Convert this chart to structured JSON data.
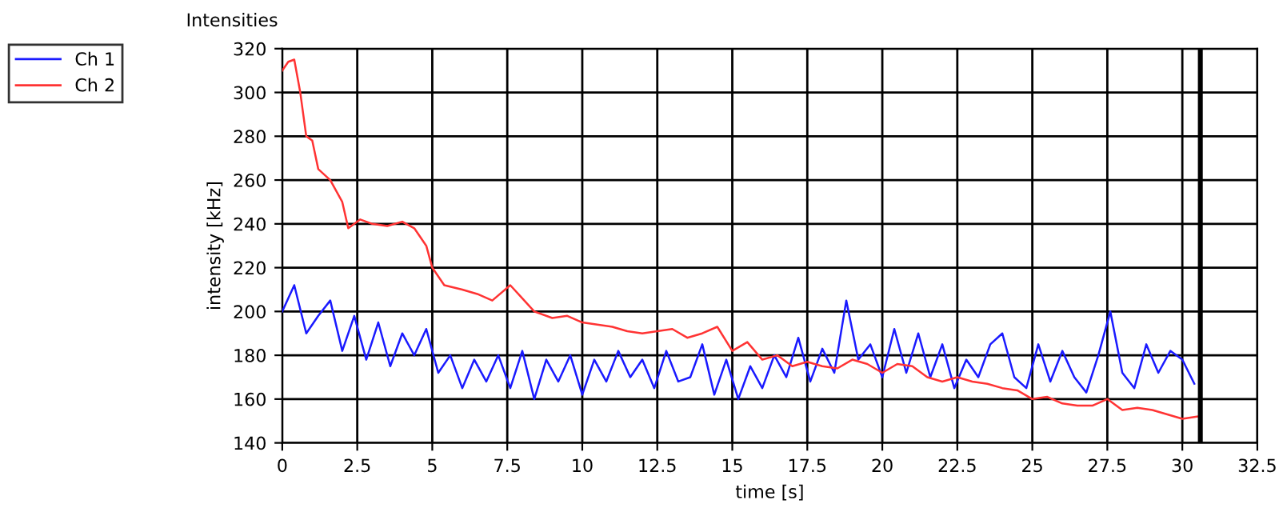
{
  "chart_data": {
    "type": "line",
    "title": "Intensities",
    "xlabel": "time [s]",
    "ylabel": "intensity [kHz]",
    "xlim": [
      0,
      32.5
    ],
    "xticks": [
      0,
      2.5,
      5,
      7.5,
      10,
      12.5,
      15,
      17.5,
      20,
      22.5,
      25,
      27.5,
      30,
      32.5
    ],
    "ylim": [
      140,
      320
    ],
    "yticks": [
      140,
      160,
      180,
      200,
      220,
      240,
      260,
      280,
      300,
      320
    ],
    "grid": true,
    "legend": "top left",
    "line_style": "solid",
    "ref_lines": [
      {
        "axis": "x",
        "value": 30.6,
        "color": "#000000"
      }
    ],
    "series": [
      {
        "name": "Ch 1",
        "color": "#1a1aff",
        "x": [
          0,
          0.4,
          0.8,
          1.2,
          1.6,
          2.0,
          2.4,
          2.8,
          3.2,
          3.6,
          4.0,
          4.4,
          4.8,
          5.2,
          5.6,
          6.0,
          6.4,
          6.8,
          7.2,
          7.6,
          8.0,
          8.4,
          8.8,
          9.2,
          9.6,
          10.0,
          10.4,
          10.8,
          11.2,
          11.6,
          12.0,
          12.4,
          12.8,
          13.2,
          13.6,
          14.0,
          14.4,
          14.8,
          15.2,
          15.6,
          16.0,
          16.4,
          16.8,
          17.2,
          17.6,
          18.0,
          18.4,
          18.8,
          19.2,
          19.6,
          20.0,
          20.4,
          20.8,
          21.2,
          21.6,
          22.0,
          22.4,
          22.8,
          23.2,
          23.6,
          24.0,
          24.4,
          24.8,
          25.2,
          25.6,
          26.0,
          26.4,
          26.8,
          27.2,
          27.6,
          28.0,
          28.4,
          28.8,
          29.2,
          29.6,
          30.0,
          30.4
        ],
        "values": [
          200,
          212,
          190,
          198,
          205,
          182,
          198,
          178,
          195,
          175,
          190,
          180,
          192,
          172,
          180,
          165,
          178,
          168,
          180,
          165,
          182,
          160,
          178,
          168,
          180,
          162,
          178,
          168,
          182,
          170,
          178,
          165,
          182,
          168,
          170,
          185,
          162,
          178,
          160,
          175,
          165,
          180,
          170,
          188,
          168,
          183,
          172,
          205,
          178,
          185,
          170,
          192,
          172,
          190,
          170,
          185,
          165,
          178,
          170,
          185,
          190,
          170,
          165,
          185,
          168,
          182,
          170,
          163,
          180,
          200,
          172,
          165,
          185,
          172,
          182,
          178,
          167
        ]
      },
      {
        "name": "Ch 2",
        "color": "#ff3333",
        "x": [
          0,
          0.2,
          0.4,
          0.6,
          0.8,
          1.0,
          1.2,
          1.6,
          2.0,
          2.2,
          2.6,
          3.0,
          3.5,
          4.0,
          4.4,
          4.8,
          5.0,
          5.4,
          6.0,
          6.5,
          7.0,
          7.6,
          8.0,
          8.4,
          9.0,
          9.5,
          10.0,
          10.5,
          11.0,
          11.5,
          12.0,
          12.5,
          13.0,
          13.5,
          14.0,
          14.5,
          15.0,
          15.5,
          16.0,
          16.5,
          17.0,
          17.5,
          18.0,
          18.5,
          19.0,
          19.5,
          20.0,
          20.5,
          21.0,
          21.5,
          22.0,
          22.5,
          23.0,
          23.5,
          24.0,
          24.5,
          25.0,
          25.5,
          26.0,
          26.5,
          27.0,
          27.5,
          28.0,
          28.5,
          29.0,
          29.5,
          30.0,
          30.5
        ],
        "values": [
          310,
          314,
          315,
          300,
          280,
          278,
          265,
          260,
          250,
          238,
          242,
          240,
          239,
          241,
          238,
          230,
          220,
          212,
          210,
          208,
          205,
          212,
          206,
          200,
          197,
          198,
          195,
          194,
          193,
          191,
          190,
          191,
          192,
          188,
          190,
          193,
          182,
          186,
          178,
          180,
          175,
          177,
          175,
          174,
          178,
          176,
          172,
          176,
          175,
          170,
          168,
          170,
          168,
          167,
          165,
          164,
          160,
          161,
          158,
          157,
          157,
          160,
          155,
          156,
          155,
          153,
          151,
          152
        ]
      }
    ]
  }
}
